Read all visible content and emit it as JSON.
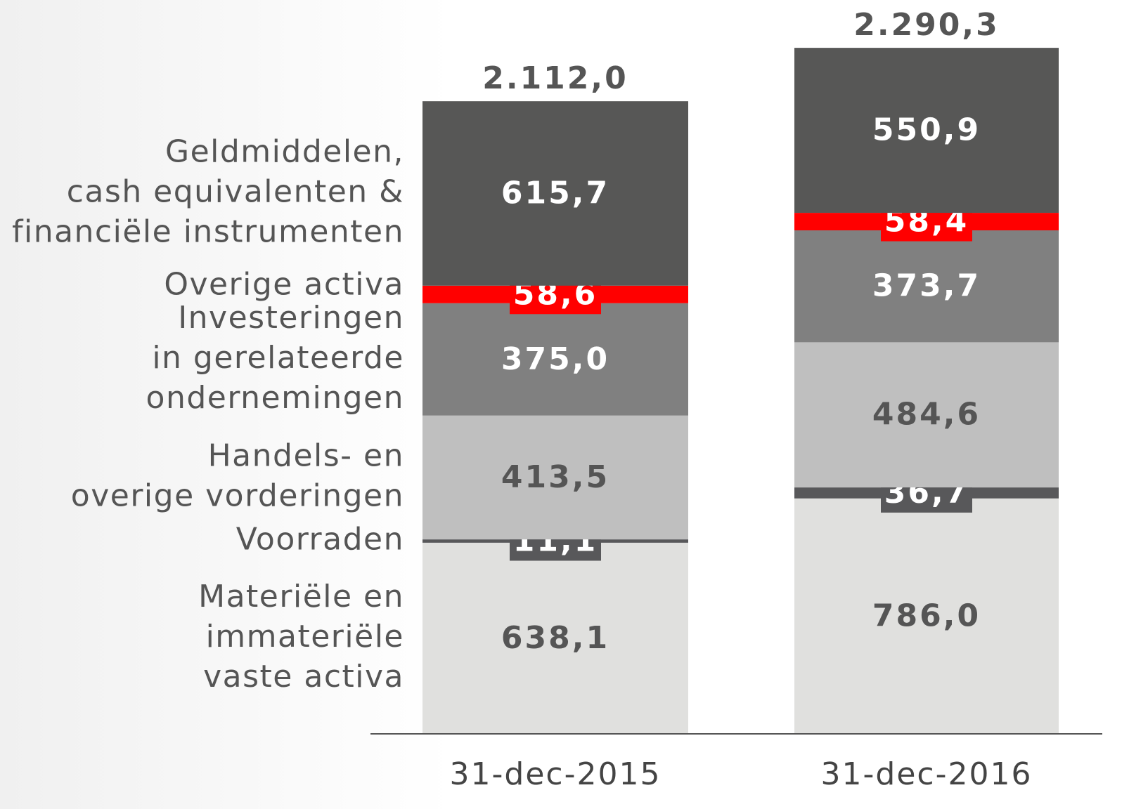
{
  "chart_data": {
    "type": "stacked-bar",
    "categories": [
      "31-dec-2015",
      "31-dec-2016"
    ],
    "series": [
      {
        "name": "Materiële en\nimmateriële\nvaste activa",
        "color": "#e0e0de",
        "label_color": "#555555",
        "values": [
          638.1,
          786.0
        ],
        "value_labels": [
          "638,1",
          "786,0"
        ]
      },
      {
        "name": "Voorraden",
        "color": "#58585a",
        "label_color": "#ffffff",
        "values": [
          11.1,
          36.7
        ],
        "value_labels": [
          "11,1",
          "36,7"
        ]
      },
      {
        "name": "Handels- en\noverige vorderingen",
        "color": "#bfbfbf",
        "label_color": "#555555",
        "values": [
          413.5,
          484.6
        ],
        "value_labels": [
          "413,5",
          "484,6"
        ]
      },
      {
        "name": "Investeringen\nin gerelateerde\nondernemingen",
        "color": "#808080",
        "label_color": "#ffffff",
        "values": [
          375.0,
          373.7
        ],
        "value_labels": [
          "375,0",
          "373,7"
        ]
      },
      {
        "name": "Overige activa",
        "color": "#ff0000",
        "label_color": "#ffffff",
        "values": [
          58.6,
          58.4
        ],
        "value_labels": [
          "58,6",
          "58,4"
        ]
      },
      {
        "name": "Geldmiddelen,\ncash equivalenten &\nfinanciële instrumenten",
        "color": "#575756",
        "label_color": "#ffffff",
        "values": [
          615.7,
          550.9
        ],
        "value_labels": [
          "615,7",
          "550,9"
        ]
      }
    ],
    "totals": {
      "values": [
        2112.0,
        2290.3
      ],
      "value_labels": [
        "2.112,0",
        "2.290,3"
      ]
    },
    "ylim": [
      0,
      2450
    ]
  }
}
